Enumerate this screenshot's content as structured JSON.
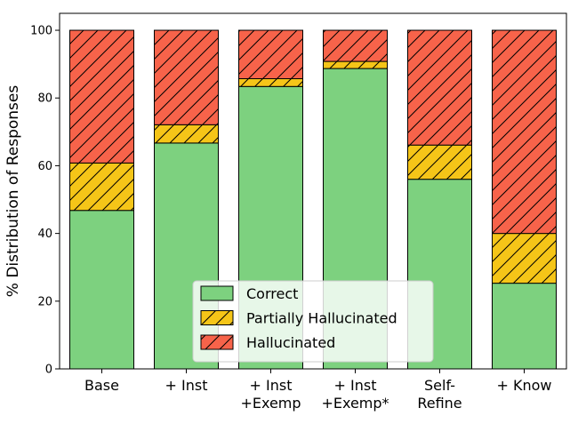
{
  "chart_data": {
    "type": "bar",
    "stacked": true,
    "categories": [
      [
        "Base"
      ],
      [
        "+ Inst"
      ],
      [
        "+ Inst",
        "+Exemp"
      ],
      [
        "+ Inst",
        "+Exemp*"
      ],
      [
        "Self-",
        "Refine"
      ],
      [
        "+ Know"
      ]
    ],
    "series": [
      {
        "name": "Correct",
        "values": [
          46.8,
          66.7,
          83.4,
          88.7,
          56.0,
          25.3
        ],
        "color": "#7dd17f",
        "hatch": "none"
      },
      {
        "name": "Partially Hallucinated",
        "values": [
          14.0,
          5.4,
          2.3,
          2.1,
          10.1,
          14.7
        ],
        "color": "#f5c518",
        "hatch": "diagonal"
      },
      {
        "name": "Hallucinated",
        "values": [
          39.2,
          27.9,
          14.3,
          9.2,
          33.9,
          60.0
        ],
        "color": "#f7634a",
        "hatch": "diagonal"
      }
    ],
    "title": "",
    "xlabel": "",
    "ylabel": "% Distribution of Responses",
    "ylim": [
      0,
      105
    ],
    "yticks": [
      0,
      20,
      40,
      60,
      80,
      100
    ],
    "grid": false,
    "legend_position": "bottom-center"
  }
}
